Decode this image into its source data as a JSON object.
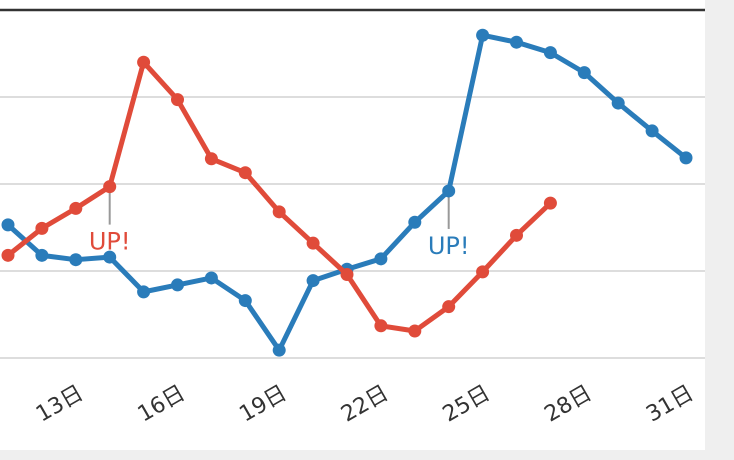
{
  "chart_data": {
    "type": "line",
    "categories": [
      null,
      null,
      "13日",
      null,
      null,
      "16日",
      null,
      null,
      "19日",
      null,
      null,
      "22日",
      null,
      null,
      "25日",
      null,
      null,
      "28日",
      null,
      null,
      "31日"
    ],
    "series": [
      {
        "name": "blue",
        "color": "#2a7cba",
        "values": [
          15.3,
          11.8,
          11.3,
          11.6,
          7.6,
          8.4,
          9.2,
          6.6,
          0.9,
          8.9,
          10.2,
          11.4,
          15.6,
          19.2,
          37.1,
          36.3,
          35.1,
          32.8,
          29.3,
          26.1,
          23.0
        ]
      },
      {
        "name": "red",
        "color": "#e04b3a",
        "values": [
          11.8,
          14.9,
          17.2,
          19.7,
          34.0,
          29.7,
          22.9,
          21.3,
          16.8,
          13.2,
          9.6,
          3.7,
          3.1,
          5.9,
          9.9,
          14.1,
          17.8,
          null,
          null,
          null,
          null
        ]
      }
    ],
    "annotations": [
      {
        "text": "UP!",
        "series": 1,
        "index": 3
      },
      {
        "text": "UP!",
        "series": 0,
        "index": 13
      }
    ],
    "ylim": [
      0,
      40
    ],
    "yticks": [
      0,
      10,
      20,
      30
    ],
    "grid": true
  }
}
